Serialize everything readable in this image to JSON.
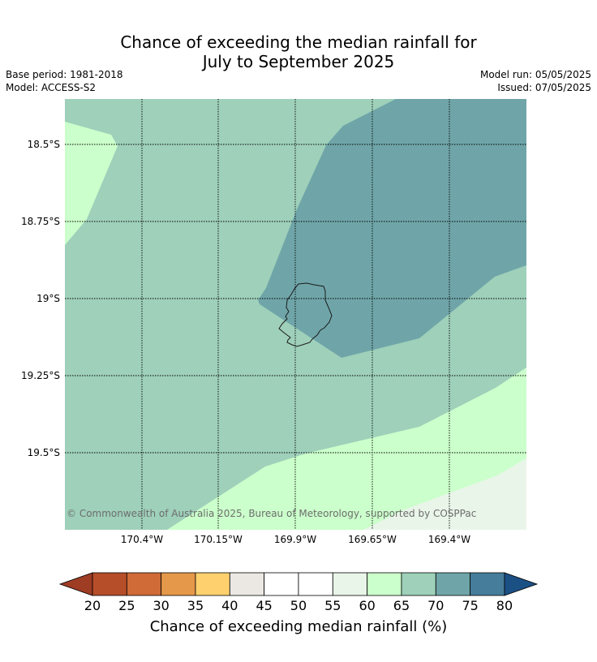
{
  "header": {
    "title_line1": "Chance of exceeding the median rainfall for",
    "title_line2": "July to September 2025",
    "base_period": "Base period: 1981-2018",
    "model": "Model: ACCESS-S2",
    "model_run": "Model run: 05/05/2025",
    "issued": "Issued: 07/05/2025"
  },
  "map": {
    "lat_labels": [
      "18.5°S",
      "18.75°S",
      "19°S",
      "19.25°S",
      "19.5°S"
    ],
    "lon_labels": [
      "170.4°W",
      "170.15°W",
      "169.9°W",
      "169.65°W",
      "169.4°W"
    ],
    "copyright": "© Commonwealth of Australia 2025, Bureau of Meteorology, supported by COSPPac",
    "colors": {
      "c55_60": "#e9f5e9",
      "c60_65": "#cbffcb",
      "c65_70": "#9ed0ba",
      "c70_75": "#6fa5a8",
      "coast": "#1a1a1a",
      "grid": "#000000"
    }
  },
  "colorbar": {
    "title": "Chance of exceeding median rainfall (%)",
    "ticks": [
      "20",
      "25",
      "30",
      "35",
      "40",
      "45",
      "50",
      "55",
      "60",
      "65",
      "70",
      "75",
      "80"
    ],
    "colors": [
      "#9e3c24",
      "#b64e2a",
      "#d06a37",
      "#e59849",
      "#ffd06e",
      "#ebe8e4",
      "#ffffff",
      "#ffffff",
      "#e9f5e9",
      "#cbffcb",
      "#9ed0ba",
      "#6fa5a8",
      "#457d9a",
      "#1b5085"
    ]
  }
}
